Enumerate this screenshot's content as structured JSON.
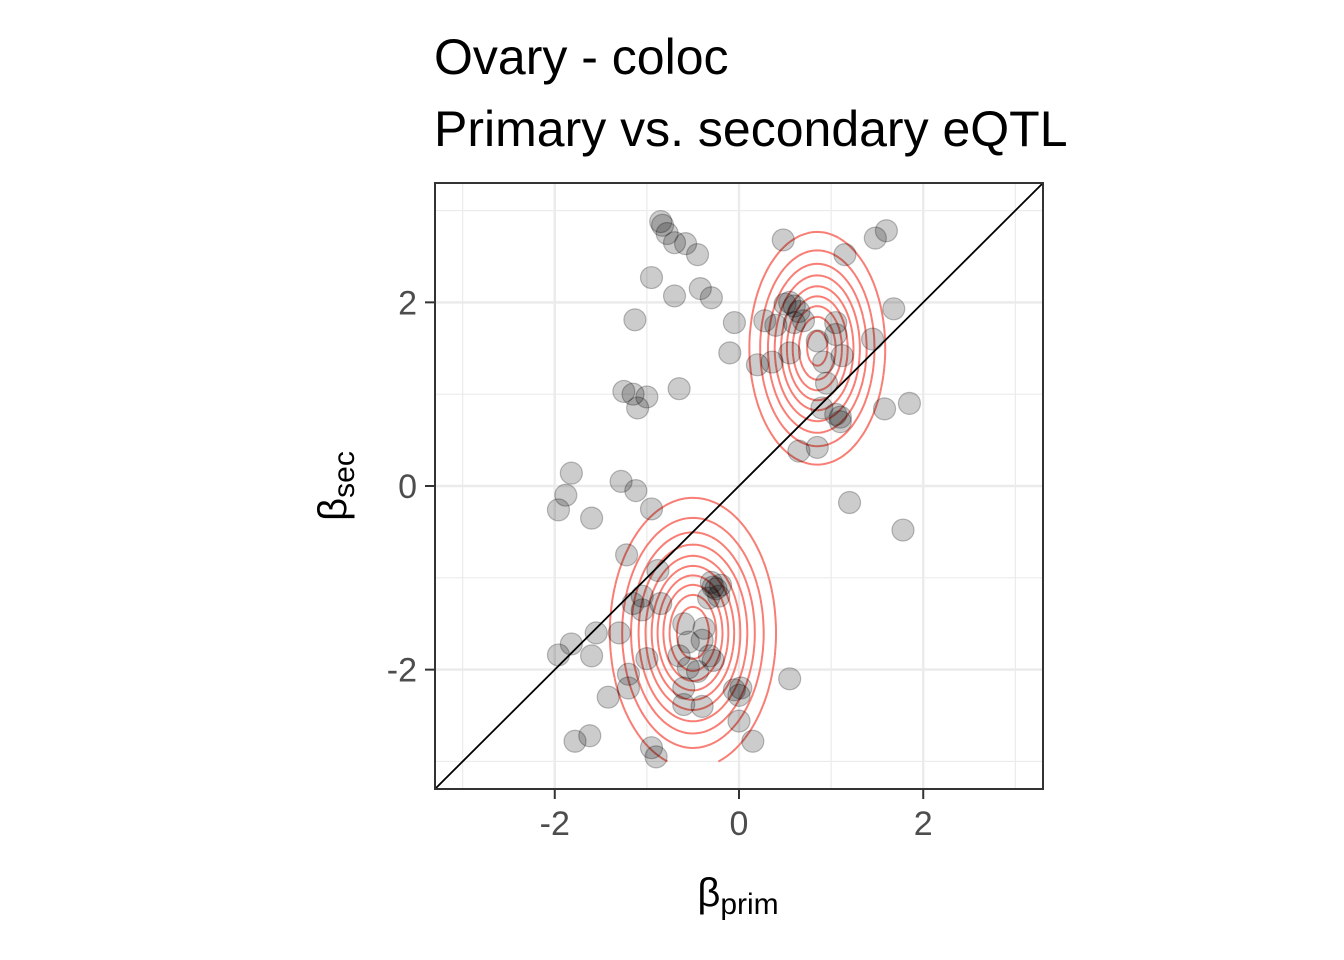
{
  "chart_data": {
    "type": "scatter",
    "title_lines": [
      "Ovary - coloc",
      "Primary vs. secondary eQTL"
    ],
    "xlabel": {
      "symbol": "β",
      "subscript": "prim"
    },
    "ylabel": {
      "symbol": "β",
      "subscript": "sec"
    },
    "xlim": [
      -3.3,
      3.3
    ],
    "ylim": [
      -3.3,
      3.3
    ],
    "x_ticks": [
      -2,
      0,
      2
    ],
    "y_ticks": [
      -2,
      0,
      2
    ],
    "x_tick_labels": [
      "-2",
      "0",
      "2"
    ],
    "y_tick_labels": [
      "-2",
      "0",
      "2"
    ],
    "grid": true,
    "reference_line": "y = x",
    "colors": {
      "points": "#000000",
      "contours": "#f8766d",
      "reference_line": "#000000",
      "grid": "#ebebeb"
    },
    "contour_modes": [
      {
        "x": -0.5,
        "y": -1.6
      },
      {
        "x": 0.85,
        "y": 1.5
      }
    ],
    "points": [
      [
        -0.85,
        2.88
      ],
      [
        -0.83,
        2.84
      ],
      [
        -0.78,
        2.75
      ],
      [
        -0.7,
        2.65
      ],
      [
        -0.58,
        2.64
      ],
      [
        -0.45,
        2.52
      ],
      [
        0.48,
        2.68
      ],
      [
        1.15,
        2.52
      ],
      [
        1.48,
        2.7
      ],
      [
        1.6,
        2.78
      ],
      [
        -0.95,
        2.27
      ],
      [
        -0.7,
        2.07
      ],
      [
        -0.42,
        2.15
      ],
      [
        -0.3,
        2.05
      ],
      [
        0.5,
        1.98
      ],
      [
        0.55,
        2.0
      ],
      [
        0.6,
        1.96
      ],
      [
        0.65,
        1.9
      ],
      [
        0.7,
        1.8
      ],
      [
        0.4,
        1.75
      ],
      [
        0.6,
        1.78
      ],
      [
        -0.05,
        1.78
      ],
      [
        1.05,
        1.78
      ],
      [
        1.68,
        1.93
      ],
      [
        -1.13,
        1.81
      ],
      [
        0.28,
        1.8
      ],
      [
        0.85,
        1.58
      ],
      [
        1.05,
        1.65
      ],
      [
        1.45,
        1.6
      ],
      [
        -0.1,
        1.45
      ],
      [
        0.2,
        1.32
      ],
      [
        0.36,
        1.35
      ],
      [
        0.55,
        1.45
      ],
      [
        0.92,
        1.35
      ],
      [
        1.12,
        1.42
      ],
      [
        0.95,
        1.12
      ],
      [
        -1.25,
        1.03
      ],
      [
        -1.15,
        1.0
      ],
      [
        -1.0,
        0.97
      ],
      [
        -1.1,
        0.85
      ],
      [
        -0.65,
        1.06
      ],
      [
        0.9,
        0.85
      ],
      [
        1.05,
        0.78
      ],
      [
        1.1,
        0.75
      ],
      [
        1.1,
        0.7
      ],
      [
        1.58,
        0.84
      ],
      [
        1.85,
        0.9
      ],
      [
        0.65,
        0.38
      ],
      [
        0.85,
        0.42
      ],
      [
        1.2,
        -0.18
      ],
      [
        1.78,
        -0.48
      ],
      [
        -1.82,
        0.14
      ],
      [
        -1.88,
        -0.1
      ],
      [
        -1.96,
        -0.26
      ],
      [
        -1.6,
        -0.35
      ],
      [
        -1.28,
        0.05
      ],
      [
        -1.12,
        -0.05
      ],
      [
        -0.95,
        -0.25
      ],
      [
        -1.22,
        -0.75
      ],
      [
        -0.88,
        -0.92
      ],
      [
        -0.3,
        -1.05
      ],
      [
        -0.28,
        -1.1
      ],
      [
        -0.25,
        -1.12
      ],
      [
        -0.2,
        -1.08
      ],
      [
        -0.22,
        -1.2
      ],
      [
        -0.33,
        -1.22
      ],
      [
        -1.05,
        -1.2
      ],
      [
        -1.15,
        -1.28
      ],
      [
        -1.05,
        -1.35
      ],
      [
        -0.85,
        -1.28
      ],
      [
        -0.6,
        -1.5
      ],
      [
        -0.55,
        -1.7
      ],
      [
        -0.4,
        -1.68
      ],
      [
        -0.38,
        -1.55
      ],
      [
        -1.55,
        -1.6
      ],
      [
        -1.3,
        -1.6
      ],
      [
        -1.96,
        -1.84
      ],
      [
        -1.82,
        -1.72
      ],
      [
        -1.6,
        -1.85
      ],
      [
        -1.2,
        -2.05
      ],
      [
        -1.0,
        -1.88
      ],
      [
        -0.65,
        -1.85
      ],
      [
        -0.55,
        -1.98
      ],
      [
        -0.45,
        -2.02
      ],
      [
        -0.32,
        -1.85
      ],
      [
        -0.28,
        -1.9
      ],
      [
        -0.6,
        -2.2
      ],
      [
        -1.2,
        -2.2
      ],
      [
        -1.42,
        -2.3
      ],
      [
        -1.62,
        -2.72
      ],
      [
        -1.78,
        -2.78
      ],
      [
        -0.05,
        -2.22
      ],
      [
        0.0,
        -2.28
      ],
      [
        0.02,
        -2.2
      ],
      [
        0.55,
        -2.1
      ],
      [
        -0.6,
        -2.38
      ],
      [
        -0.4,
        -2.4
      ],
      [
        0.0,
        -2.56
      ],
      [
        0.15,
        -2.78
      ],
      [
        -0.95,
        -2.85
      ],
      [
        -0.9,
        -2.95
      ]
    ]
  }
}
